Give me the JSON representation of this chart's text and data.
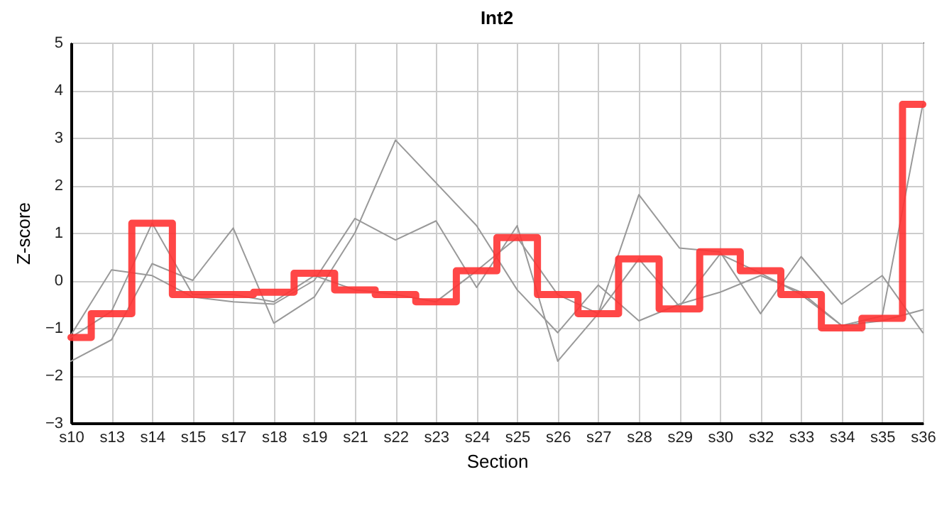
{
  "chart_data": {
    "type": "line",
    "title": "Int2",
    "xlabel": "Section",
    "ylabel": "Z-score",
    "categories": [
      "s10",
      "s13",
      "s14",
      "s15",
      "s17",
      "s18",
      "s19",
      "s21",
      "s22",
      "s23",
      "s24",
      "s25",
      "s26",
      "s27",
      "s28",
      "s29",
      "s30",
      "s32",
      "s33",
      "s34",
      "s35",
      "s36"
    ],
    "ylim": [
      -3,
      5
    ],
    "yticks": [
      -3,
      -2,
      -1,
      0,
      1,
      2,
      3,
      4,
      5
    ],
    "grid": true,
    "marker": "none",
    "line_style": "solid",
    "series": [
      {
        "type": "line",
        "color": "#999999",
        "values": [
          -1.7,
          -1.25,
          0.35,
          0.0,
          1.1,
          -0.9,
          -0.35,
          1.0,
          2.95,
          2.05,
          1.15,
          -0.2,
          -1.1,
          -0.1,
          -0.85,
          -0.5,
          -0.25,
          0.1,
          -0.25,
          -0.95,
          -0.85,
          -0.62
        ]
      },
      {
        "type": "line",
        "color": "#999999",
        "values": [
          -1.15,
          0.22,
          0.1,
          -0.35,
          -0.45,
          -0.5,
          0.0,
          1.3,
          0.85,
          1.25,
          -0.15,
          1.15,
          -1.7,
          -0.7,
          1.8,
          0.68,
          0.6,
          -0.7,
          0.5,
          -0.5,
          0.1,
          -1.1
        ]
      },
      {
        "type": "line",
        "color": "#999999",
        "values": [
          -1.2,
          -0.65,
          1.2,
          -0.3,
          -0.3,
          -0.45,
          0.1,
          -0.2,
          -0.3,
          -0.45,
          0.2,
          0.9,
          -0.3,
          -0.7,
          0.45,
          -0.55,
          0.55,
          0.15,
          -0.3,
          -0.95,
          -0.75,
          3.7
        ]
      },
      {
        "type": "step",
        "color": "#ff3333",
        "values": [
          -1.2,
          -0.7,
          1.2,
          -0.3,
          -0.3,
          -0.25,
          0.15,
          -0.2,
          -0.3,
          -0.45,
          0.2,
          0.9,
          -0.3,
          -0.7,
          0.45,
          -0.6,
          0.6,
          0.2,
          -0.3,
          -1.0,
          -0.8,
          3.7
        ]
      }
    ]
  }
}
